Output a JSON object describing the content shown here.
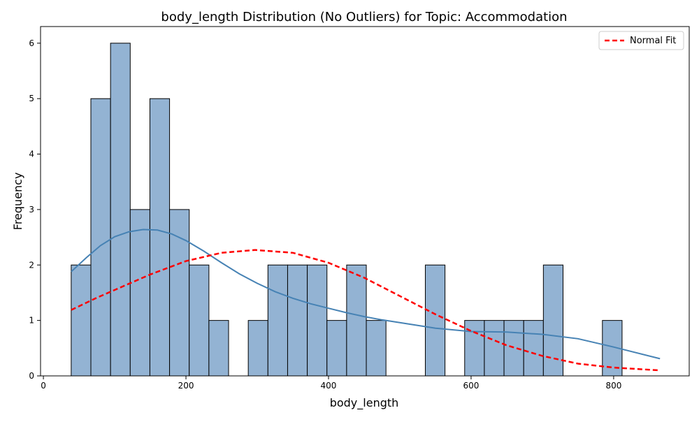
{
  "chart_data": {
    "type": "histogram",
    "title": "body_length Distribution (No Outliers) for Topic: Accommodation",
    "xlabel": "body_length",
    "ylabel": "Frequency",
    "xlim": [
      -4,
      906
    ],
    "ylim": [
      0,
      6.3
    ],
    "xticks": [
      0,
      200,
      400,
      600,
      800
    ],
    "yticks": [
      0,
      1,
      2,
      3,
      4,
      5,
      6
    ],
    "bin_start": 39,
    "bin_width": 27.6,
    "bin_counts": [
      2,
      5,
      6,
      3,
      5,
      3,
      2,
      1,
      0,
      1,
      2,
      2,
      2,
      1,
      2,
      1,
      0,
      0,
      2,
      0,
      1,
      1,
      1,
      1,
      2,
      0,
      0,
      1
    ],
    "kde_curve": {
      "x": [
        39,
        60,
        80,
        100,
        120,
        140,
        160,
        180,
        200,
        225,
        250,
        275,
        300,
        325,
        350,
        375,
        400,
        425,
        450,
        475,
        500,
        550,
        600,
        650,
        700,
        750,
        800,
        865
      ],
      "y": [
        1.88,
        2.13,
        2.35,
        2.51,
        2.6,
        2.64,
        2.63,
        2.56,
        2.44,
        2.25,
        2.04,
        1.84,
        1.67,
        1.52,
        1.4,
        1.3,
        1.22,
        1.14,
        1.07,
        1.01,
        0.96,
        0.86,
        0.8,
        0.79,
        0.75,
        0.67,
        0.52,
        0.31
      ]
    },
    "normal_fit": {
      "x": [
        39,
        75,
        100,
        150,
        200,
        250,
        297,
        350,
        400,
        450,
        500,
        550,
        600,
        650,
        700,
        750,
        800,
        865
      ],
      "y": [
        1.19,
        1.41,
        1.55,
        1.83,
        2.07,
        2.22,
        2.27,
        2.22,
        2.04,
        1.77,
        1.44,
        1.11,
        0.81,
        0.55,
        0.36,
        0.22,
        0.15,
        0.1
      ]
    },
    "legend": {
      "label": "Normal Fit",
      "position": "upper right"
    },
    "colors": {
      "bar_fill": "#93b3d3",
      "bar_edge": "#000000",
      "kde": "#4682b4",
      "normal_fit": "#ff0000"
    },
    "grid": false
  }
}
